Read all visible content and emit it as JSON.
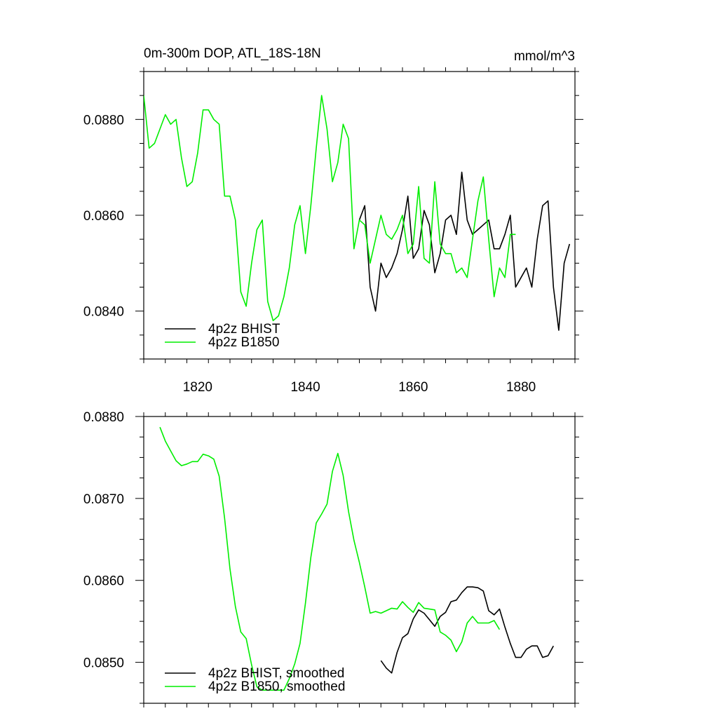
{
  "colors": {
    "bhist": "#000000",
    "b1850": "#00ee00",
    "axis": "#000000"
  },
  "chart_data": [
    {
      "type": "line",
      "title_left": "0m-300m DOP, ATL_18S-18N",
      "title_right": "mmol/m^3",
      "xlim": [
        1810,
        1890
      ],
      "ylim": [
        0.083,
        0.089
      ],
      "xticks": [
        1820,
        1840,
        1860,
        1880
      ],
      "xtick_labels": [
        "1820",
        "1840",
        "1860",
        "1880"
      ],
      "yticks": [
        0.084,
        0.086,
        0.088
      ],
      "ytick_labels": [
        "0.0840",
        "0.0860",
        "0.0880"
      ],
      "legend_position": "bottom-left",
      "series": [
        {
          "name": "4p2z BHIST",
          "color": "#000000",
          "x": [
            1850,
            1851,
            1852,
            1853,
            1854,
            1855,
            1856,
            1857,
            1858,
            1859,
            1860,
            1861,
            1862,
            1863,
            1864,
            1865,
            1866,
            1867,
            1868,
            1869,
            1870,
            1871,
            1872,
            1873,
            1874,
            1875,
            1876,
            1877,
            1878,
            1879,
            1880,
            1881,
            1882,
            1883,
            1884,
            1885,
            1886,
            1887,
            1888,
            1889
          ],
          "y": [
            0.0859,
            0.0862,
            0.0845,
            0.084,
            0.085,
            0.0847,
            0.0849,
            0.0852,
            0.0857,
            0.0864,
            0.0851,
            0.0853,
            0.0861,
            0.0858,
            0.0848,
            0.0852,
            0.0859,
            0.086,
            0.0856,
            0.0869,
            0.0859,
            0.0856,
            0.0857,
            0.0858,
            0.0859,
            0.0853,
            0.0853,
            0.0856,
            0.086,
            0.0845,
            0.0847,
            0.0849,
            0.0845,
            0.0855,
            0.0862,
            0.0863,
            0.0845,
            0.0836,
            0.085,
            0.0854
          ]
        },
        {
          "name": "4p2z B1850",
          "color": "#00ee00",
          "x": [
            1810,
            1811,
            1812,
            1813,
            1814,
            1815,
            1816,
            1817,
            1818,
            1819,
            1820,
            1821,
            1822,
            1823,
            1824,
            1825,
            1826,
            1827,
            1828,
            1829,
            1830,
            1831,
            1832,
            1833,
            1834,
            1835,
            1836,
            1837,
            1838,
            1839,
            1840,
            1841,
            1842,
            1843,
            1844,
            1845,
            1846,
            1847,
            1848,
            1849,
            1850,
            1851,
            1852,
            1853,
            1854,
            1855,
            1856,
            1857,
            1858,
            1859,
            1860,
            1861,
            1862,
            1863,
            1864,
            1865,
            1866,
            1867,
            1868,
            1869,
            1870,
            1871,
            1872,
            1873,
            1874,
            1875,
            1876,
            1877,
            1878,
            1879
          ],
          "y": [
            0.0885,
            0.0874,
            0.0875,
            0.0878,
            0.0881,
            0.0879,
            0.088,
            0.0872,
            0.0866,
            0.0867,
            0.0873,
            0.0882,
            0.0882,
            0.088,
            0.0879,
            0.0864,
            0.0864,
            0.0859,
            0.0844,
            0.0841,
            0.085,
            0.0857,
            0.0859,
            0.0842,
            0.0838,
            0.0839,
            0.0843,
            0.0849,
            0.0858,
            0.0862,
            0.0852,
            0.0862,
            0.0874,
            0.0885,
            0.0878,
            0.0867,
            0.0871,
            0.0879,
            0.0876,
            0.0853,
            0.0859,
            0.0858,
            0.085,
            0.0855,
            0.086,
            0.0856,
            0.0855,
            0.0857,
            0.086,
            0.0852,
            0.0854,
            0.0866,
            0.0851,
            0.085,
            0.0867,
            0.0854,
            0.0852,
            0.0852,
            0.0848,
            0.0849,
            0.0847,
            0.0855,
            0.0863,
            0.0868,
            0.0855,
            0.0843,
            0.0849,
            0.0847,
            0.0856,
            0.0856
          ]
        }
      ]
    },
    {
      "type": "line",
      "xlim": [
        1810,
        1890
      ],
      "ylim": [
        0.0845,
        0.088
      ],
      "xticks": [
        1820,
        1840,
        1860,
        1880
      ],
      "xtick_labels": [],
      "yticks": [
        0.085,
        0.086,
        0.087,
        0.088
      ],
      "ytick_labels": [
        "0.0850",
        "0.0860",
        "0.0870",
        "0.0880"
      ],
      "legend_position": "bottom-left",
      "series": [
        {
          "name": "4p2z BHIST, smoothed",
          "color": "#000000",
          "x": [
            1854,
            1855,
            1856,
            1857,
            1858,
            1859,
            1860,
            1861,
            1862,
            1863,
            1864,
            1865,
            1866,
            1867,
            1868,
            1869,
            1870,
            1871,
            1872,
            1873,
            1874,
            1875,
            1876,
            1877,
            1878,
            1879,
            1880,
            1881,
            1882,
            1883,
            1884,
            1885,
            1886
          ],
          "y": [
            0.08502,
            0.08493,
            0.08487,
            0.08512,
            0.0853,
            0.08535,
            0.08553,
            0.08564,
            0.0856,
            0.08552,
            0.08544,
            0.08556,
            0.08561,
            0.08574,
            0.08576,
            0.08585,
            0.08592,
            0.08592,
            0.08591,
            0.08587,
            0.08563,
            0.08558,
            0.08565,
            0.08543,
            0.08523,
            0.08506,
            0.08506,
            0.08516,
            0.0852,
            0.0852,
            0.08506,
            0.08508,
            0.0852
          ]
        },
        {
          "name": "4p2z B1850, smoothed",
          "color": "#00ee00",
          "x": [
            1813,
            1814,
            1815,
            1816,
            1817,
            1818,
            1819,
            1820,
            1821,
            1822,
            1823,
            1824,
            1825,
            1826,
            1827,
            1828,
            1829,
            1830,
            1831,
            1832,
            1833,
            1834,
            1835,
            1836,
            1837,
            1838,
            1839,
            1840,
            1841,
            1842,
            1843,
            1844,
            1845,
            1846,
            1847,
            1848,
            1849,
            1850,
            1851,
            1852,
            1853,
            1854,
            1855,
            1856,
            1857,
            1858,
            1859,
            1860,
            1861,
            1862,
            1863,
            1864,
            1865,
            1866,
            1867,
            1868,
            1869,
            1870,
            1871,
            1872,
            1873,
            1874,
            1875,
            1876
          ],
          "y": [
            0.08787,
            0.0877,
            0.08758,
            0.08746,
            0.0874,
            0.08742,
            0.08745,
            0.08745,
            0.08754,
            0.08752,
            0.08748,
            0.08727,
            0.08676,
            0.08614,
            0.08568,
            0.08537,
            0.08529,
            0.08497,
            0.0847,
            0.08466,
            0.08466,
            0.08466,
            0.08466,
            0.08466,
            0.0848,
            0.08498,
            0.08523,
            0.08572,
            0.08628,
            0.0867,
            0.08681,
            0.08693,
            0.08733,
            0.08755,
            0.08728,
            0.08684,
            0.08649,
            0.08622,
            0.08592,
            0.0856,
            0.08562,
            0.0856,
            0.08563,
            0.08566,
            0.08565,
            0.08574,
            0.08567,
            0.08561,
            0.08573,
            0.08566,
            0.08565,
            0.08564,
            0.08537,
            0.08533,
            0.08527,
            0.08513,
            0.08525,
            0.08548,
            0.08556,
            0.08548,
            0.08548,
            0.08548,
            0.08551,
            0.0854
          ]
        }
      ]
    }
  ]
}
